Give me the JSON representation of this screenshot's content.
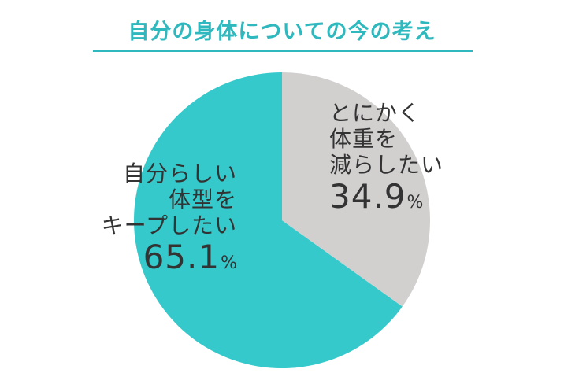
{
  "colors": {
    "title": "#2fb8bd",
    "rule": "#2fb8bd",
    "label_text": "#333333"
  },
  "chart_data": {
    "type": "pie",
    "title": "自分の身体についての今の考え",
    "unit": "%",
    "slices": [
      {
        "label": "自分らしい体型をキープしたい",
        "label_lines": [
          "自分らしい",
          "体型を",
          "キープしたい"
        ],
        "value": 65.1,
        "value_text": "65.1",
        "color": "#35c9cb"
      },
      {
        "label": "とにかく体重を減らしたい",
        "label_lines": [
          "とにかく",
          "体重を",
          "減らしたい"
        ],
        "value": 34.9,
        "value_text": "34.9",
        "color": "#d2cfcf"
      }
    ]
  }
}
